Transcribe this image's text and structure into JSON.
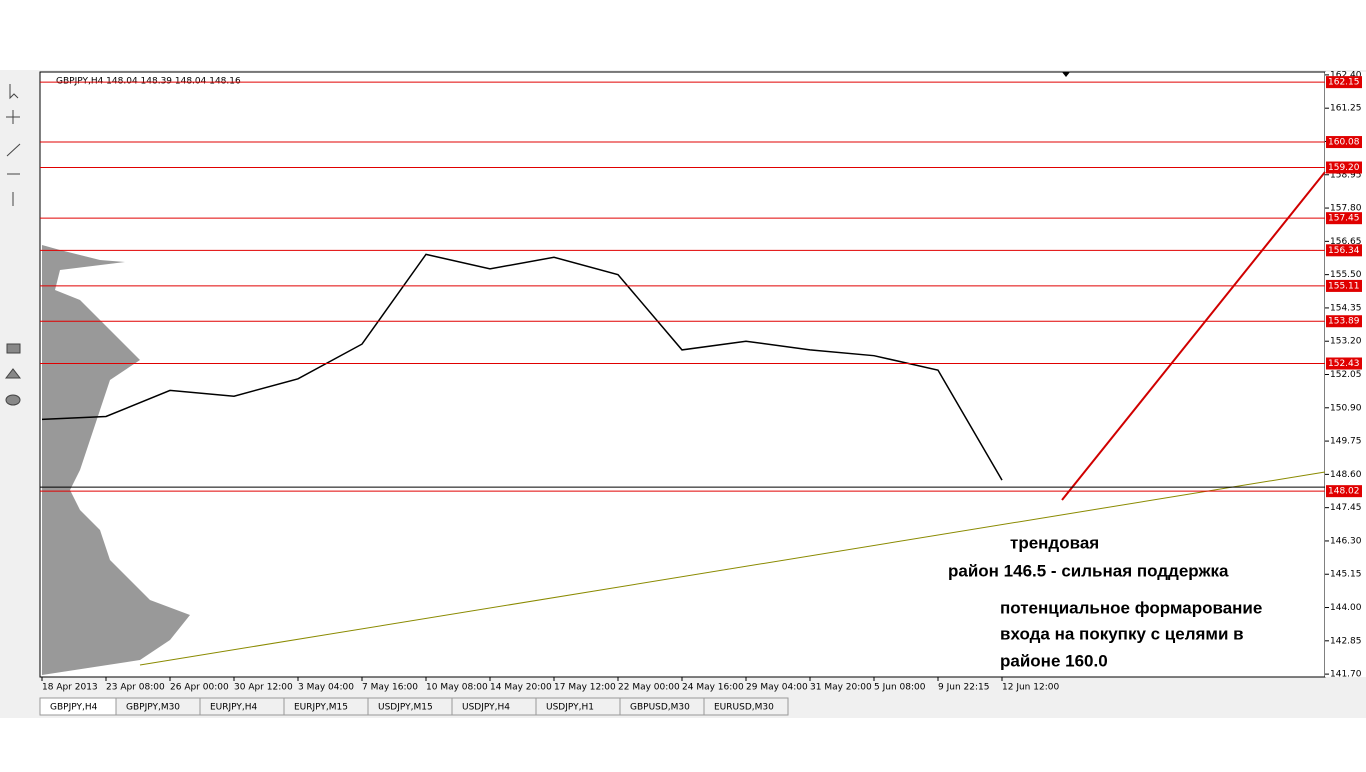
{
  "header": {
    "symbol_info": "GBPJPY,H4  148.04 148.39 148.04 148.16"
  },
  "chart_data": {
    "type": "line",
    "categories": [
      "18 Apr 2013",
      "23 Apr 08:00",
      "26 Apr 00:00",
      "30 Apr 12:00",
      "3 May 04:00",
      "7 May 16:00",
      "10 May 08:00",
      "14 May 20:00",
      "17 May 12:00",
      "22 May 00:00",
      "24 May 16:00",
      "29 May 04:00",
      "31 May 20:00",
      "5 Jun 08:00",
      "9 Jun 22:15",
      "12 Jun 12:00"
    ],
    "series": [
      {
        "name": "GBPJPY,H4",
        "color": "#000000",
        "values": [
          150.5,
          150.6,
          151.5,
          151.3,
          151.9,
          153.1,
          156.2,
          155.7,
          156.1,
          155.5,
          152.9,
          153.2,
          152.9,
          152.7,
          152.2,
          148.4
        ]
      }
    ],
    "current_price": 148.16,
    "ylim": [
      141.6,
      162.5
    ],
    "yticks": [
      {
        "value": 162.4,
        "label": "162.40"
      },
      {
        "value": 161.25,
        "label": "161.25"
      },
      {
        "value": 160.1,
        "label": "160.10"
      },
      {
        "value": 158.95,
        "label": "158.95"
      },
      {
        "value": 157.8,
        "label": "157.80"
      },
      {
        "value": 156.65,
        "label": "156.65"
      },
      {
        "value": 155.5,
        "label": "155.50"
      },
      {
        "value": 154.35,
        "label": "154.35"
      },
      {
        "value": 153.2,
        "label": "153.20"
      },
      {
        "value": 152.05,
        "label": "152.05"
      },
      {
        "value": 150.9,
        "label": "150.90"
      },
      {
        "value": 149.75,
        "label": "149.75"
      },
      {
        "value": 148.6,
        "label": "148.60"
      },
      {
        "value": 147.45,
        "label": "147.45"
      },
      {
        "value": 146.3,
        "label": "146.30"
      },
      {
        "value": 145.15,
        "label": "145.15"
      },
      {
        "value": 144,
        "label": "144.00"
      },
      {
        "value": 142.85,
        "label": "142.85"
      },
      {
        "value": 141.7,
        "label": "141.70"
      }
    ],
    "levels": [
      162.15,
      160.08,
      {
        "value": 159.2,
        "label": "159.20"
      },
      157.45,
      156.34,
      155.11,
      153.89,
      152.43,
      148.02
    ],
    "level_color": "#e00000",
    "annotations": [
      "трендовая",
      "район 146.5 - сильная поддержка",
      "потенциальное формарование",
      "входа на покупку с целями в",
      "районе 160.0"
    ]
  },
  "tabs": [
    "GBPJPY,H4",
    "GBPJPY,M30",
    "EURJPY,H4",
    "EURJPY,M15",
    "USDJPY,M15",
    "USDJPY,H4",
    "USDJPY,H1",
    "GBPUSD,M30",
    "EURUSD,M30"
  ]
}
